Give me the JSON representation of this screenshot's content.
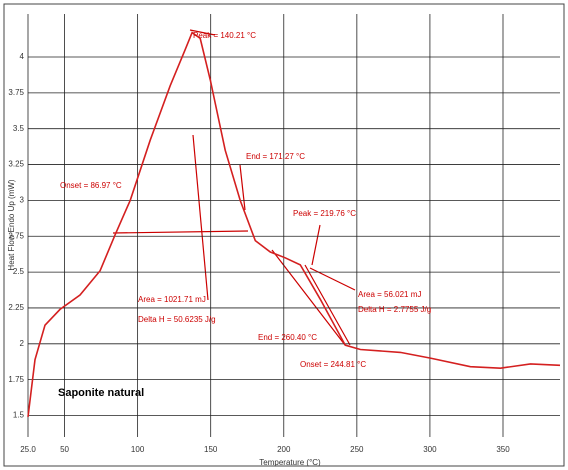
{
  "chart_data": {
    "type": "line",
    "title": "Saponite natural",
    "xlabel": "Temperature (°C)",
    "ylabel": "Heat Flow Endo Up (mW)",
    "x": [
      25,
      29.8,
      36.6,
      46.9,
      60.6,
      74.3,
      84.6,
      94.9,
      108.6,
      122.3,
      132.5,
      137.3,
      142.8,
      149.7,
      159.9,
      170.2,
      180.5,
      190.8,
      201,
      211.3,
      225,
      242.1,
      252.4,
      279.8,
      300.3,
      327.7,
      348.3,
      368.8,
      389
    ],
    "series": [
      {
        "name": "Saponite natural",
        "color": "#d42020",
        "values": [
          1.49,
          1.89,
          2.13,
          2.24,
          2.34,
          2.51,
          2.76,
          3.0,
          3.42,
          3.8,
          4.05,
          4.17,
          4.13,
          3.84,
          3.35,
          3.0,
          2.72,
          2.64,
          2.6,
          2.55,
          2.31,
          1.99,
          1.96,
          1.94,
          1.9,
          1.84,
          1.83,
          1.86,
          1.85
        ]
      }
    ],
    "xlim": [
      25,
      389
    ],
    "xticks": [
      {
        "value": 25,
        "label": "25.0"
      },
      50,
      100,
      150,
      200,
      250,
      300,
      350
    ],
    "ylim": [
      1.35,
      4.3
    ],
    "yticks": [
      1.5,
      1.75,
      2,
      2.25,
      2.5,
      2.75,
      3,
      3.25,
      3.5,
      3.75,
      4
    ],
    "grid": true,
    "annotations": [
      "Peak = 140.21 °C",
      "End = 171.27 °C",
      "Onset = 86.97 °C",
      "Area = 1021.71 mJ",
      "Delta H = 50.6235 J/g",
      "Peak = 219.76 °C",
      "Area = 56.021 mJ",
      "Delta H = 2.7755 J/g",
      "End = 260.40 °C",
      "Onset = 244.81 °C"
    ]
  }
}
